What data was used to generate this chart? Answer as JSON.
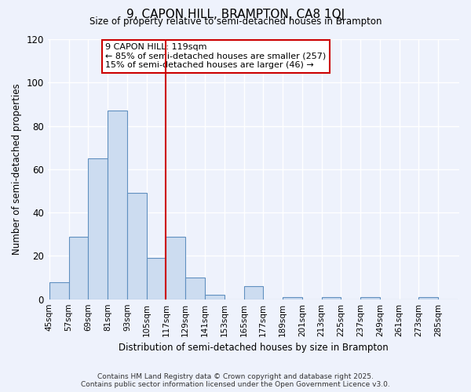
{
  "title": "9, CAPON HILL, BRAMPTON, CA8 1QJ",
  "subtitle": "Size of property relative to semi-detached houses in Brampton",
  "xlabel": "Distribution of semi-detached houses by size in Brampton",
  "ylabel": "Number of semi-detached properties",
  "bin_labels": [
    "45sqm",
    "57sqm",
    "69sqm",
    "81sqm",
    "93sqm",
    "105sqm",
    "117sqm",
    "129sqm",
    "141sqm",
    "153sqm",
    "165sqm",
    "177sqm",
    "189sqm",
    "201sqm",
    "213sqm",
    "225sqm",
    "237sqm",
    "249sqm",
    "261sqm",
    "273sqm",
    "285sqm"
  ],
  "bin_edges": [
    45,
    57,
    69,
    81,
    93,
    105,
    117,
    129,
    141,
    153,
    165,
    177,
    189,
    201,
    213,
    225,
    237,
    249,
    261,
    273,
    285
  ],
  "bar_heights": [
    8,
    29,
    65,
    87,
    49,
    19,
    29,
    10,
    2,
    0,
    6,
    0,
    1,
    0,
    1,
    0,
    1,
    0,
    0,
    1,
    0
  ],
  "bar_color": "#ccdcf0",
  "bar_edge_color": "#6090c0",
  "vline_x": 117,
  "vline_color": "#cc0000",
  "ylim": [
    0,
    120
  ],
  "yticks": [
    0,
    20,
    40,
    60,
    80,
    100,
    120
  ],
  "annotation_title": "9 CAPON HILL: 119sqm",
  "annotation_line1": "← 85% of semi-detached houses are smaller (257)",
  "annotation_line2": "15% of semi-detached houses are larger (46) →",
  "annotation_box_color": "#ffffff",
  "annotation_box_edge_color": "#cc0000",
  "footer_line1": "Contains HM Land Registry data © Crown copyright and database right 2025.",
  "footer_line2": "Contains public sector information licensed under the Open Government Licence v3.0.",
  "background_color": "#eef2fc",
  "grid_color": "#ffffff"
}
